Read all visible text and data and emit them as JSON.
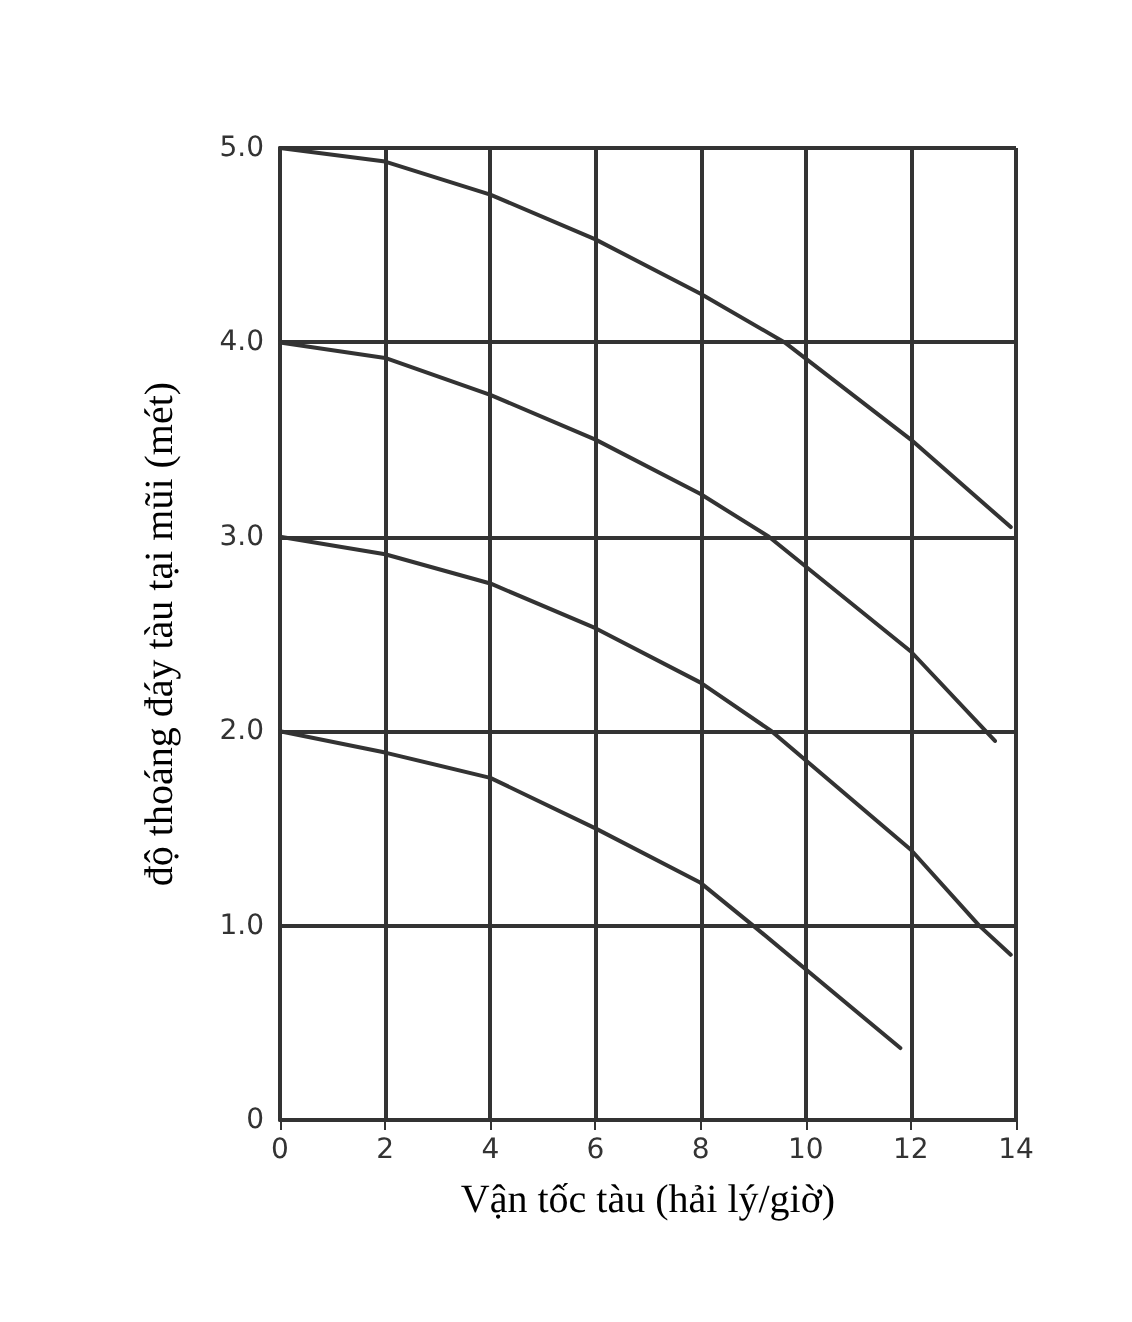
{
  "chart_data": {
    "type": "line",
    "xlabel": "Vận tốc tàu (hải lý/giờ)",
    "ylabel": "độ thoáng đáy tàu tại mũi (mét)",
    "xlim": [
      0,
      14
    ],
    "xticks": [
      0,
      2,
      4,
      6,
      8,
      10,
      12,
      14
    ],
    "ylim": [
      0,
      5
    ],
    "yticks": [
      0,
      {
        "value": 1,
        "label": "1.0"
      },
      {
        "value": 2,
        "label": "2.0"
      },
      {
        "value": 3,
        "label": "3.0"
      },
      {
        "value": 4,
        "label": "4.0"
      },
      {
        "value": 5,
        "label": "5.0"
      }
    ],
    "grid": true,
    "marker": "none",
    "line_style": "solid",
    "series": [
      {
        "color": "#333333",
        "x": [
          0,
          2,
          4,
          6,
          8,
          9.6,
          12,
          13.9
        ],
        "values": [
          5.0,
          4.93,
          4.76,
          4.53,
          4.25,
          4.0,
          3.5,
          3.05
        ]
      },
      {
        "color": "#333333",
        "x": [
          0,
          2,
          4,
          6,
          8,
          9.3,
          12,
          13.6
        ],
        "values": [
          4.0,
          3.92,
          3.73,
          3.5,
          3.22,
          3.0,
          2.41,
          1.95
        ]
      },
      {
        "color": "#333333",
        "x": [
          0,
          2,
          4,
          6,
          8,
          9.35,
          12,
          13.3,
          13.9
        ],
        "values": [
          3.0,
          2.91,
          2.76,
          2.53,
          2.25,
          2.0,
          1.39,
          1.0,
          0.85
        ]
      },
      {
        "color": "#333333",
        "x": [
          0,
          2,
          4,
          6,
          8,
          9.0,
          11.8
        ],
        "values": [
          2.0,
          1.89,
          1.76,
          1.5,
          1.22,
          1.0,
          0.37
        ]
      }
    ]
  }
}
